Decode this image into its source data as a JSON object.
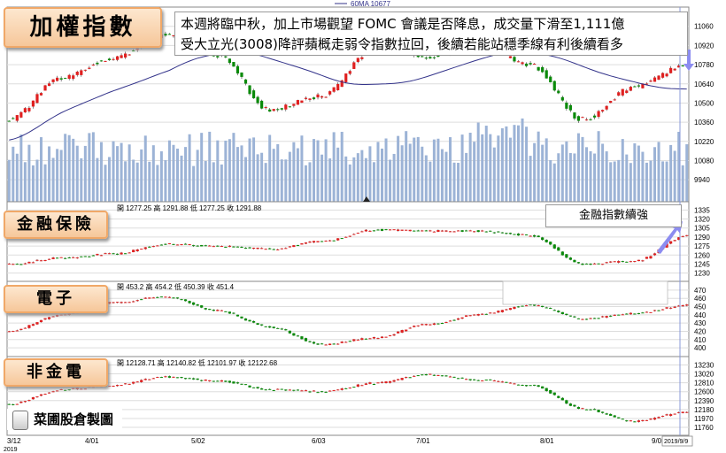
{
  "legend_ma": "60MA 10677",
  "annotation": {
    "line1": "本週將臨中秋，加上市場觀望 FOMC 會議是否降息，成交量下滑至1,111億",
    "line2": "受大立光(3008)降評蘋概走弱令指數拉回，後續若能站穩季線有利後續看多"
  },
  "finance_note": "金融指數續強",
  "brand": "菜圃股倉製圖",
  "date_highlight": "2019/9/9",
  "panels": [
    {
      "name": "加權指數",
      "ohlc_text": "",
      "yticks": [
        9940,
        10080,
        10220,
        10360,
        10500,
        10640,
        10780,
        10920,
        11060
      ]
    },
    {
      "name": "金融保險",
      "ohlc_text": "開 1277.25  高 1291.88  低 1277.25  收 1291.88",
      "yticks": [
        1230,
        1245,
        1260,
        1275,
        1290,
        1305,
        1320,
        1335
      ]
    },
    {
      "name": "電子",
      "ohlc_text": "開 453.2  高 454.2  低 450.39  收 451.4",
      "yticks": [
        400,
        410,
        420,
        430,
        440,
        450,
        460,
        470
      ]
    },
    {
      "name": "非金電",
      "ohlc_text": "開 12128.71  高 12140.82  低 12101.97  收 12122.68",
      "yticks": [
        11760,
        11970,
        12180,
        12390,
        12600,
        12810,
        13020,
        13230
      ]
    }
  ],
  "chart_data": [
    {
      "type": "candlestick",
      "title": "加權指數",
      "xlabel": "",
      "ylabel": "",
      "x": [
        "3/12",
        "3/26",
        "4/09",
        "4/23",
        "5/07",
        "5/21",
        "6/04",
        "6/18",
        "7/02",
        "7/16",
        "7/30",
        "8/13",
        "8/27",
        "9/09"
      ],
      "close": [
        10380,
        10680,
        10830,
        11000,
        10850,
        10450,
        10550,
        10900,
        10840,
        10920,
        10780,
        10380,
        10620,
        10780
      ],
      "ma60_last": 10677,
      "ylim": [
        9870,
        11110
      ],
      "volume": "bars"
    },
    {
      "type": "candlestick",
      "title": "金融保險",
      "x": [
        "3/12",
        "3/26",
        "4/09",
        "4/23",
        "5/07",
        "5/21",
        "6/04",
        "6/18",
        "7/02",
        "7/16",
        "7/30",
        "8/13",
        "8/27",
        "9/09"
      ],
      "close": [
        1245,
        1255,
        1262,
        1278,
        1275,
        1270,
        1283,
        1302,
        1300,
        1300,
        1293,
        1245,
        1250,
        1291.88
      ],
      "ylim": [
        1228,
        1337
      ]
    },
    {
      "type": "candlestick",
      "title": "電子",
      "x": [
        "3/12",
        "3/26",
        "4/09",
        "4/23",
        "5/07",
        "5/21",
        "6/04",
        "6/18",
        "7/02",
        "7/16",
        "7/30",
        "8/13",
        "8/27",
        "9/09"
      ],
      "close": [
        420,
        440,
        455,
        462,
        445,
        425,
        404,
        412,
        428,
        440,
        452,
        435,
        442,
        451.4
      ],
      "ylim": [
        398,
        472
      ]
    },
    {
      "type": "candlestick",
      "title": "非金電",
      "x": [
        "3/12",
        "3/26",
        "4/09",
        "4/23",
        "5/07",
        "5/21",
        "6/04",
        "6/18",
        "7/02",
        "7/16",
        "7/30",
        "8/13",
        "8/27",
        "9/09"
      ],
      "close": [
        12300,
        12650,
        12750,
        12950,
        12850,
        12650,
        12600,
        12800,
        13000,
        12880,
        12750,
        12200,
        11900,
        12122.68
      ],
      "ylim": [
        11740,
        13260
      ]
    }
  ],
  "xaxis": {
    "labels": [
      "3/12",
      "4/01",
      "5/02",
      "6/03",
      "7/01",
      "8/01",
      "9/02"
    ],
    "year": "2019"
  }
}
